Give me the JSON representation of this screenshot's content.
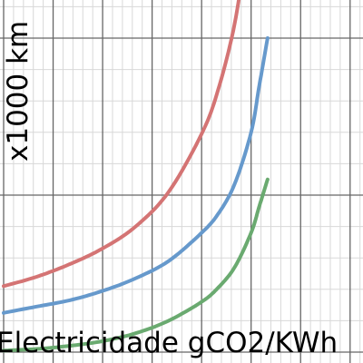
{
  "chart_data": {
    "type": "line",
    "title": "",
    "xlabel": "Electricidade gCO2/KWh",
    "ylabel": "x1000 km",
    "grid": true,
    "legend": "none",
    "series": [
      {
        "color": "#d47474",
        "x": [
          0,
          100,
          200,
          300,
          400,
          500,
          600,
          650,
          700,
          733,
          750
        ],
        "y": [
          0.42,
          0.48,
          0.56,
          0.66,
          0.8,
          1.02,
          1.39,
          1.67,
          2.09,
          2.55,
          2.82
        ]
      },
      {
        "color": "#6699cc",
        "x": [
          0,
          100,
          200,
          300,
          400,
          500,
          600,
          650,
          700,
          750,
          775,
          800
        ],
        "y": [
          0.25,
          0.29,
          0.33,
          0.39,
          0.47,
          0.58,
          0.76,
          0.88,
          1.07,
          1.4,
          1.7,
          2.0
        ]
      },
      {
        "color": "#6aaa70",
        "x": [
          0,
          100,
          200,
          300,
          400,
          500,
          600,
          650,
          700,
          750,
          775,
          800
        ],
        "y": [
          0.01,
          0.02,
          0.04,
          0.07,
          0.12,
          0.2,
          0.32,
          0.41,
          0.54,
          0.76,
          0.93,
          1.1
        ]
      }
    ]
  }
}
